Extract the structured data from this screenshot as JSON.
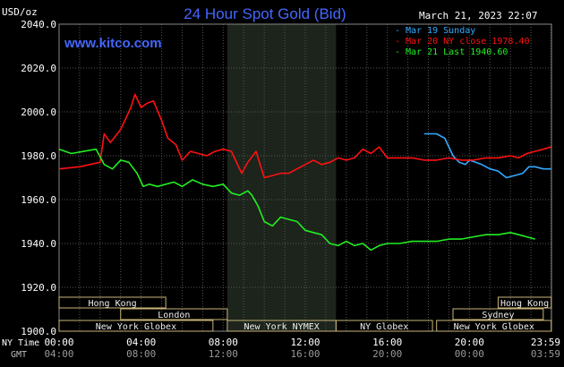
{
  "header": {
    "unit": "USD/oz",
    "title": "24 Hour Spot Gold (Bid)",
    "website": "www.kitco.com",
    "datetime": "March 21, 2023 22:07"
  },
  "axes": {
    "ny_time_label": "NY Time",
    "gmt_label": "GMT"
  },
  "colors": {
    "background": "#000000",
    "grid": "#555555",
    "title": "#4466ff",
    "series_mar19": "#33aaff",
    "series_mar20": "#ff1111",
    "series_mar21": "#22ee22",
    "nymex_band": "#1c241c",
    "session_box": "#c8b478"
  },
  "chart_data": {
    "type": "line",
    "title": "24 Hour Spot Gold (Bid)",
    "ylabel": "USD/oz",
    "xlabel": "",
    "ylim": [
      1900,
      2040
    ],
    "xlim_hours": [
      0,
      24
    ],
    "grid": true,
    "legend_position": "top-right",
    "y_ticks": [
      "1900.0",
      "1920.0",
      "1940.0",
      "1960.0",
      "1980.0",
      "2000.0",
      "2020.0",
      "2040.0"
    ],
    "x_ticks_ny": [
      "00:00",
      "04:00",
      "08:00",
      "12:00",
      "16:00",
      "20:00",
      "23:59"
    ],
    "x_ticks_gmt": [
      "04:00",
      "08:00",
      "12:00",
      "16:00",
      "20:00",
      "00:00",
      "03:59"
    ],
    "series": [
      {
        "name": "Mar 19 Sunday",
        "x": [
          17.8,
          18.4,
          18.8,
          19.2,
          19.5,
          19.8,
          20.0,
          20.3,
          20.6,
          21.0,
          21.4,
          21.8,
          22.2,
          22.6,
          22.9,
          23.2,
          23.6,
          23.98
        ],
        "y": [
          1990,
          1990,
          1988,
          1980,
          1977,
          1976,
          1978,
          1977,
          1976,
          1974,
          1973,
          1970,
          1971,
          1972,
          1975,
          1975,
          1974,
          1974
        ]
      },
      {
        "name": "Mar 20 NY close 1978.40",
        "x": [
          0,
          1.0,
          2.0,
          2.2,
          2.5,
          3.0,
          3.4,
          3.5,
          3.7,
          4.0,
          4.3,
          4.6,
          5.0,
          5.3,
          5.7,
          6.0,
          6.4,
          6.8,
          7.2,
          7.6,
          8.0,
          8.4,
          8.9,
          9.2,
          9.6,
          10.0,
          10.4,
          10.8,
          11.2,
          11.6,
          12.0,
          12.4,
          12.8,
          13.2,
          13.6,
          14.0,
          14.4,
          14.8,
          15.2,
          15.6,
          16.0,
          16.6,
          17.2,
          17.8,
          18.4,
          19.0,
          19.6,
          20.2,
          20.8,
          21.4,
          22.0,
          22.4,
          22.8,
          23.2,
          23.6,
          23.98
        ],
        "y": [
          1974,
          1975,
          1977,
          1990,
          1986,
          1992,
          2000,
          2002,
          2008,
          2002,
          2004,
          2005,
          1996,
          1988,
          1985,
          1978,
          1982,
          1981,
          1980,
          1982,
          1983,
          1982,
          1972,
          1977,
          1982,
          1970,
          1971,
          1972,
          1972,
          1974,
          1976,
          1978,
          1976,
          1977,
          1979,
          1978,
          1979,
          1983,
          1981,
          1984,
          1979,
          1979,
          1979,
          1978,
          1978,
          1979,
          1978,
          1978,
          1979,
          1979,
          1980,
          1979,
          1981,
          1982,
          1983,
          1984
        ]
      },
      {
        "name": "Mar 21 Last 1940.60",
        "x": [
          0,
          0.6,
          1.2,
          1.8,
          2.2,
          2.6,
          3.0,
          3.4,
          3.8,
          4.1,
          4.4,
          4.8,
          5.2,
          5.6,
          6.0,
          6.5,
          7.0,
          7.5,
          8.0,
          8.4,
          8.8,
          9.2,
          9.4,
          9.7,
          10.0,
          10.4,
          10.8,
          11.2,
          11.6,
          12.0,
          12.4,
          12.8,
          13.2,
          13.6,
          14.0,
          14.4,
          14.8,
          15.2,
          15.6,
          16.0,
          16.6,
          17.2,
          17.8,
          18.4,
          19.0,
          19.6,
          20.2,
          20.8,
          21.4,
          22.0,
          22.4,
          22.8,
          23.2
        ],
        "y": [
          1983,
          1981,
          1982,
          1983,
          1976,
          1974,
          1978,
          1977,
          1972,
          1966,
          1967,
          1966,
          1967,
          1968,
          1966,
          1969,
          1967,
          1966,
          1967,
          1963,
          1962,
          1964,
          1962,
          1957,
          1950,
          1948,
          1952,
          1951,
          1950,
          1946,
          1945,
          1944,
          1940,
          1939,
          1941,
          1939,
          1940,
          1937,
          1939,
          1940,
          1940,
          1941,
          1941,
          1941,
          1942,
          1942,
          1943,
          1944,
          1944,
          1945,
          1944,
          1943,
          1942
        ]
      }
    ],
    "annotations": [
      "Hong Kong",
      "London",
      "New York Globex",
      "New York NYMEX",
      "NY Globex",
      "Sydney"
    ],
    "sessions": [
      {
        "label": "Hong Kong",
        "start": 0,
        "end": 5.2,
        "row": 0
      },
      {
        "label": "London",
        "start": 3.0,
        "end": 8.2,
        "row": 1
      },
      {
        "label": "New York Globex",
        "start": 0,
        "end": 7.5,
        "row": 2
      },
      {
        "label": "New York NYMEX",
        "start": 8.2,
        "end": 13.5,
        "row": 2
      },
      {
        "label": "NY Globex",
        "start": 13.5,
        "end": 18.2,
        "row": 2
      },
      {
        "label": "Hong Kong",
        "start": 21.4,
        "end": 23.99,
        "row": 0
      },
      {
        "label": "Sydney",
        "start": 19.2,
        "end": 23.6,
        "row": 1
      },
      {
        "label": "New York Globex",
        "start": 18.4,
        "end": 23.99,
        "row": 2
      }
    ],
    "nymex_shade": [
      8.2,
      13.5
    ]
  }
}
